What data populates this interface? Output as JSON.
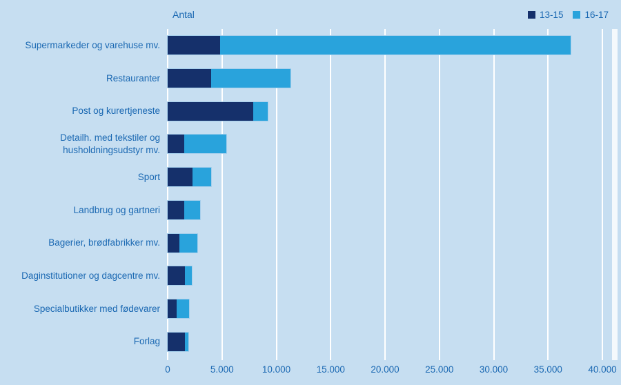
{
  "page": {
    "background": "#c6def1",
    "text_color": "#1a68b2",
    "gridline_color": "#ffffff"
  },
  "chart_data": {
    "type": "bar",
    "orientation": "horizontal",
    "stacked": true,
    "axis_title": "Antal",
    "categories": [
      "Supermarkeder og varehuse mv.",
      "Restauranter",
      "Post og kurertjeneste",
      "Detailh. med tekstiler og husholdningsudstyr mv.",
      "Sport",
      "Landbrug og gartneri",
      "Bagerier, brødfabrikker mv.",
      "Daginstitutioner og dagcentre mv.",
      "Specialbutikker med fødevarer",
      "Forlag"
    ],
    "series": [
      {
        "name": "13-15",
        "color": "#15306b",
        "values": [
          4800,
          4000,
          7900,
          1500,
          2300,
          1500,
          1100,
          1600,
          800,
          1600
        ]
      },
      {
        "name": "16-17",
        "color": "#29a3dc",
        "values": [
          32300,
          7300,
          1300,
          3900,
          1700,
          1500,
          1600,
          600,
          1200,
          300
        ]
      }
    ],
    "totals": [
      37100,
      11300,
      9200,
      5400,
      4000,
      3000,
      2700,
      2200,
      2000,
      1900
    ],
    "xlim": [
      0,
      40000
    ],
    "xticks": [
      0,
      5000,
      10000,
      15000,
      20000,
      25000,
      30000,
      35000,
      40000
    ],
    "xtick_labels": [
      "0",
      "5.000",
      "10.000",
      "15.000",
      "20.000",
      "25.000",
      "30.000",
      "35.000",
      "40.000"
    ],
    "grid": true,
    "legend_position": "top-right"
  }
}
